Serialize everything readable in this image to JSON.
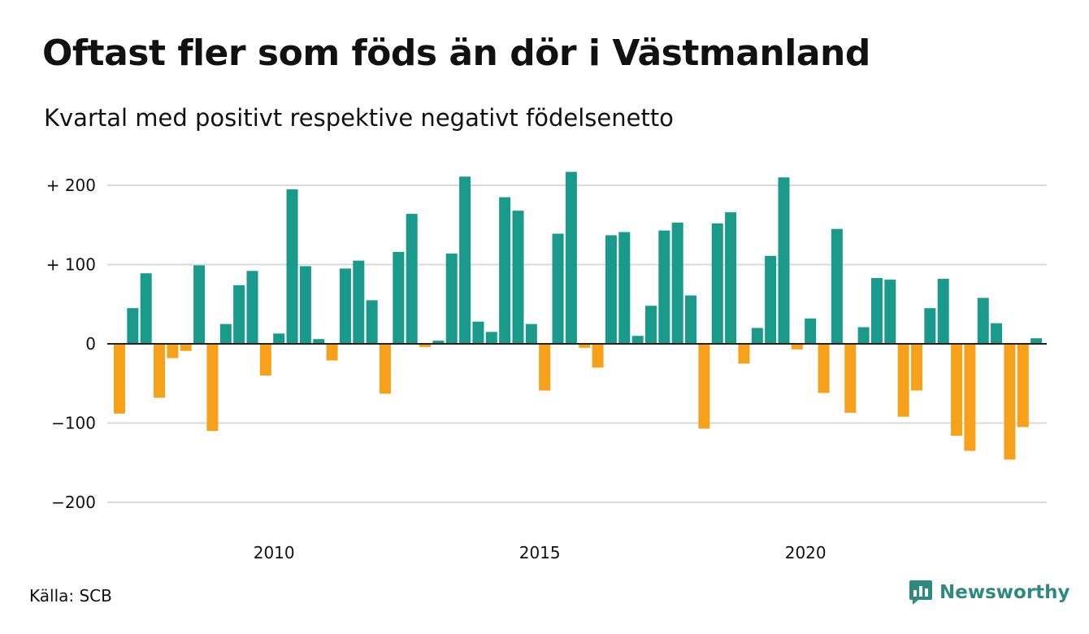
{
  "header": {
    "title": "Oftast fler som föds än dör i Västmanland",
    "subtitle": "Kvartal med positivt respektive negativt födelsenetto"
  },
  "footer": {
    "source": "Källa: SCB",
    "brand": "Newsworthy"
  },
  "colors": {
    "positive": "#1a9a8a",
    "negative": "#f7a11a",
    "grid": "#d9d9d9",
    "brand": "#2f8a7e"
  },
  "icons": {
    "brand_logo": "newsworthy-chart-bubble-icon"
  },
  "chart_data": {
    "type": "bar",
    "title": "Oftast fler som föds än dör i Västmanland",
    "subtitle": "Kvartal med positivt respektive negativt födelsenetto",
    "xlabel": "",
    "ylabel": "",
    "ylim": [
      -230,
      230
    ],
    "grid": true,
    "legend": "none",
    "yticks": [
      {
        "value": 200,
        "label": "+ 200"
      },
      {
        "value": 100,
        "label": "+ 100"
      },
      {
        "value": 0,
        "label": "0"
      },
      {
        "value": -100,
        "label": "−100"
      },
      {
        "value": -200,
        "label": "−200"
      }
    ],
    "xticks": [
      {
        "value": "2010",
        "label": "2010"
      },
      {
        "value": "2015",
        "label": "2015"
      },
      {
        "value": "2020",
        "label": "2020"
      }
    ],
    "categories": [
      "2007 K1",
      "2007 K2",
      "2007 K3",
      "2007 K4",
      "2008 K1",
      "2008 K2",
      "2008 K3",
      "2008 K4",
      "2009 K1",
      "2009 K2",
      "2009 K3",
      "2009 K4",
      "2010 K1",
      "2010 K2",
      "2010 K3",
      "2010 K4",
      "2011 K1",
      "2011 K2",
      "2011 K3",
      "2011 K4",
      "2012 K1",
      "2012 K2",
      "2012 K3",
      "2012 K4",
      "2013 K1",
      "2013 K2",
      "2013 K3",
      "2013 K4",
      "2014 K1",
      "2014 K2",
      "2014 K3",
      "2014 K4",
      "2015 K1",
      "2015 K2",
      "2015 K3",
      "2015 K4",
      "2016 K1",
      "2016 K2",
      "2016 K3",
      "2016 K4",
      "2017 K1",
      "2017 K2",
      "2017 K3",
      "2017 K4",
      "2018 K1",
      "2018 K2",
      "2018 K3",
      "2018 K4",
      "2019 K1",
      "2019 K2",
      "2019 K3",
      "2019 K4",
      "2020 K1",
      "2020 K2",
      "2020 K3",
      "2020 K4",
      "2021 K1",
      "2021 K2",
      "2021 K3",
      "2021 K4",
      "2022 K1",
      "2022 K2",
      "2022 K3",
      "2022 K4",
      "2023 K1",
      "2023 K2",
      "2023 K3",
      "2023 K4",
      "2024 K1",
      "2024 K2"
    ],
    "values": [
      -88,
      45,
      89,
      -68,
      -18,
      -9,
      99,
      -110,
      25,
      74,
      92,
      -40,
      13,
      195,
      98,
      6,
      -21,
      95,
      105,
      55,
      -63,
      116,
      164,
      -4,
      4,
      114,
      211,
      28,
      15,
      185,
      168,
      25,
      -59,
      139,
      217,
      -5,
      -30,
      137,
      141,
      10,
      48,
      143,
      153,
      61,
      -107,
      152,
      166,
      -25,
      20,
      111,
      210,
      -7,
      32,
      -62,
      145,
      -87,
      21,
      83,
      81,
      -92,
      -59,
      45,
      82,
      -116,
      -135,
      58,
      26,
      -146,
      -105,
      7
    ]
  }
}
